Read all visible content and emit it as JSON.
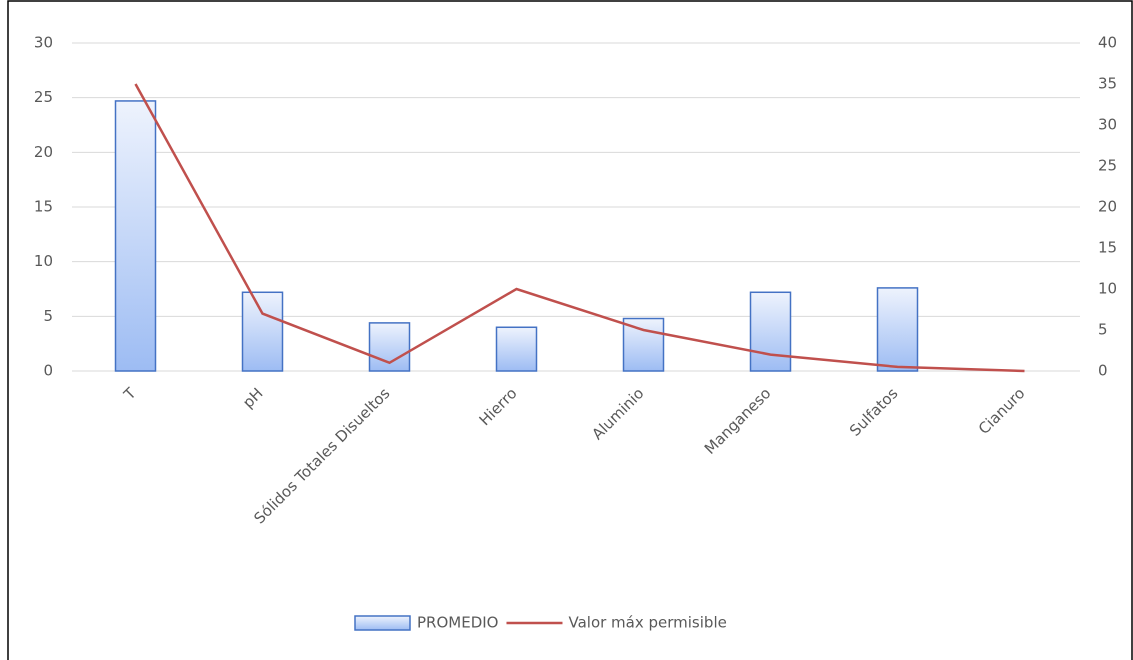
{
  "chart_data": {
    "type": "combo",
    "categories": [
      "T",
      "pH",
      "Sólidos Totales Disueltos",
      "Hierro",
      "Aluminio",
      "Manganeso",
      "Sulfatos",
      "Cianuro"
    ],
    "series": [
      {
        "name": "PROMEDIO",
        "type": "bar",
        "color": "#4472c4",
        "values": [
          24.7,
          7.2,
          4.4,
          4.0,
          4.8,
          7.2,
          7.6,
          0
        ]
      },
      {
        "name": "Valor máx permisible",
        "type": "line",
        "axis": "y2",
        "color": "#c0504d",
        "values": [
          35,
          7,
          1,
          10,
          5,
          2,
          0.5,
          0
        ]
      }
    ],
    "ylim": [
      0,
      30
    ],
    "yticks": [
      0,
      5,
      10,
      15,
      20,
      25,
      30
    ],
    "y2lim": [
      0,
      40
    ],
    "y2ticks": [
      0,
      5,
      10,
      15,
      20,
      25,
      30,
      35,
      40
    ],
    "grid": true,
    "legend": "bottom"
  }
}
